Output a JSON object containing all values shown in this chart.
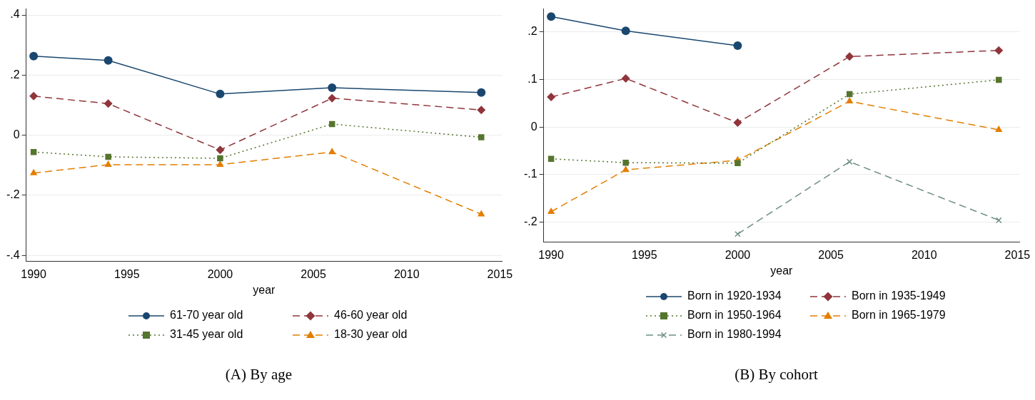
{
  "chart_data": [
    {
      "type": "line",
      "title": "(A) By age",
      "xlabel": "year",
      "x": [
        1990,
        1994,
        2000,
        2006,
        2014
      ],
      "xlim": [
        1989.6,
        2015.1
      ],
      "xticks": [
        1990,
        1995,
        2000,
        2005,
        2010,
        2015
      ],
      "ylim": [
        -0.42,
        0.42
      ],
      "yticks": [
        {
          "value": -0.4,
          "label": "-.4"
        },
        {
          "value": -0.2,
          "label": "-.2"
        },
        0,
        {
          "value": 0.2,
          "label": ".2"
        },
        {
          "value": 0.4,
          "label": ".4"
        }
      ],
      "grid": "y",
      "legend": "bottom",
      "series": [
        {
          "name": "61-70 year old",
          "color": "#1a476f",
          "marker": "circle",
          "line_style": "solid",
          "values": [
            0.263,
            0.249,
            0.137,
            0.158,
            0.142
          ]
        },
        {
          "name": "46-60 year old",
          "color": "#90353b",
          "marker": "diamond",
          "line_style": "dashed",
          "values": [
            0.13,
            0.105,
            -0.049,
            0.123,
            0.084
          ]
        },
        {
          "name": "31-45 year old",
          "color": "#55752f",
          "marker": "square",
          "line_style": "dotted",
          "values": [
            -0.056,
            -0.072,
            -0.077,
            0.037,
            -0.007
          ]
        },
        {
          "name": "18-30 year old",
          "color": "#e37e00",
          "marker": "triangle",
          "line_style": "dashed",
          "values": [
            -0.126,
            -0.098,
            -0.098,
            -0.056,
            -0.263
          ]
        }
      ]
    },
    {
      "type": "line",
      "title": "(B) By cohort",
      "xlabel": "year",
      "x": [
        1990,
        1994,
        2000,
        2006,
        2014
      ],
      "xlim": [
        1989.6,
        2015.1
      ],
      "xticks": [
        1990,
        1995,
        2000,
        2005,
        2010,
        2015
      ],
      "ylim": [
        -0.242,
        0.248
      ],
      "yticks": [
        {
          "value": -0.2,
          "label": "-.2"
        },
        {
          "value": -0.1,
          "label": "-.1"
        },
        0,
        {
          "value": 0.1,
          "label": ".1"
        },
        {
          "value": 0.2,
          "label": ".2"
        }
      ],
      "grid": "y",
      "legend": "bottom",
      "series": [
        {
          "name": "Born in 1920-1934",
          "color": "#1a476f",
          "marker": "circle",
          "line_style": "solid",
          "values": [
            0.232,
            0.202,
            0.171,
            null,
            null
          ]
        },
        {
          "name": "Born in 1935-1949",
          "color": "#90353b",
          "marker": "diamond",
          "line_style": "dashed",
          "values": [
            0.063,
            0.102,
            0.009,
            0.148,
            0.161
          ]
        },
        {
          "name": "Born in 1950-1964",
          "color": "#55752f",
          "marker": "square",
          "line_style": "dotted",
          "values": [
            -0.067,
            -0.075,
            -0.076,
            0.069,
            0.099
          ]
        },
        {
          "name": "Born in 1965-1979",
          "color": "#e37e00",
          "marker": "triangle",
          "line_style": "dashed",
          "values": [
            -0.178,
            -0.09,
            -0.07,
            0.054,
            -0.006
          ]
        },
        {
          "name": "Born in 1980-1994",
          "color": "#6e8e84",
          "marker": "cross",
          "line_style": "dashed",
          "values": [
            null,
            null,
            -0.225,
            -0.073,
            -0.196
          ]
        }
      ]
    }
  ]
}
